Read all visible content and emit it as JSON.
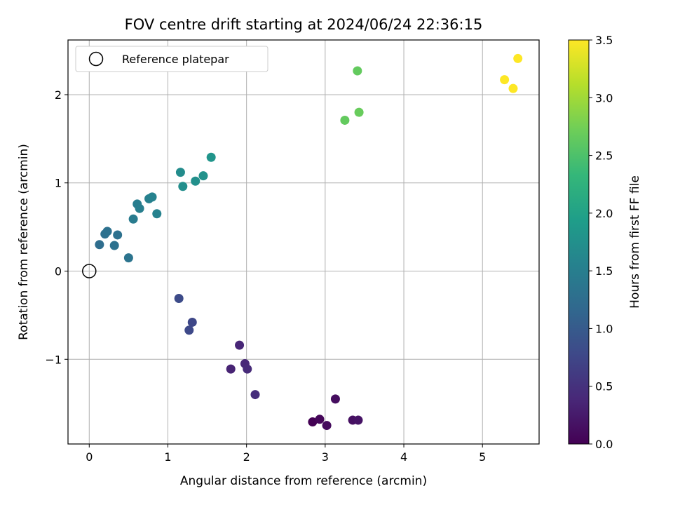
{
  "chart_data": {
    "type": "scatter",
    "title": "FOV centre drift starting at 2024/06/24 22:36:15",
    "xlabel": "Angular distance from reference (arcmin)",
    "ylabel": "Rotation from reference (arcmin)",
    "xlim": [
      -0.27,
      5.72
    ],
    "ylim": [
      -1.96,
      2.62
    ],
    "xticks": [
      0,
      1,
      2,
      3,
      4,
      5
    ],
    "yticks": [
      -1,
      0,
      1,
      2
    ],
    "xtick_labels": [
      "0",
      "1",
      "2",
      "3",
      "4",
      "5"
    ],
    "ytick_labels": [
      "−1",
      "0",
      "1",
      "2"
    ],
    "grid": true,
    "legend": {
      "placement": "top-left",
      "entries": [
        {
          "label": "Reference platepar",
          "marker": "open-circle"
        }
      ]
    },
    "reference_point": {
      "x": 0,
      "y": 0
    },
    "colormap": "viridis",
    "colorbar": {
      "label": "Hours from first FF file",
      "min": 0.0,
      "max": 3.5,
      "ticks": [
        0.0,
        0.5,
        1.0,
        1.5,
        2.0,
        2.5,
        3.0,
        3.5
      ],
      "tick_labels": [
        "0.0",
        "0.5",
        "1.0",
        "1.5",
        "2.0",
        "2.5",
        "3.0",
        "3.5"
      ]
    },
    "points": [
      {
        "x": 2.84,
        "y": -1.71,
        "hours": 0.0
      },
      {
        "x": 2.93,
        "y": -1.68,
        "hours": 0.05
      },
      {
        "x": 3.02,
        "y": -1.75,
        "hours": 0.1
      },
      {
        "x": 3.13,
        "y": -1.45,
        "hours": 0.12
      },
      {
        "x": 3.35,
        "y": -1.69,
        "hours": 0.15
      },
      {
        "x": 3.42,
        "y": -1.69,
        "hours": 0.18
      },
      {
        "x": 1.8,
        "y": -1.11,
        "hours": 0.35
      },
      {
        "x": 1.91,
        "y": -0.84,
        "hours": 0.38
      },
      {
        "x": 1.98,
        "y": -1.05,
        "hours": 0.4
      },
      {
        "x": 2.01,
        "y": -1.11,
        "hours": 0.42
      },
      {
        "x": 2.11,
        "y": -1.4,
        "hours": 0.45
      },
      {
        "x": 1.14,
        "y": -0.31,
        "hours": 0.8
      },
      {
        "x": 1.27,
        "y": -0.67,
        "hours": 0.78
      },
      {
        "x": 1.31,
        "y": -0.58,
        "hours": 0.76
      },
      {
        "x": 0.13,
        "y": 0.3,
        "hours": 1.25
      },
      {
        "x": 0.2,
        "y": 0.42,
        "hours": 1.28
      },
      {
        "x": 0.23,
        "y": 0.45,
        "hours": 1.3
      },
      {
        "x": 0.32,
        "y": 0.29,
        "hours": 1.3
      },
      {
        "x": 0.36,
        "y": 0.41,
        "hours": 1.3
      },
      {
        "x": 0.5,
        "y": 0.15,
        "hours": 1.35
      },
      {
        "x": 0.56,
        "y": 0.59,
        "hours": 1.45
      },
      {
        "x": 0.61,
        "y": 0.76,
        "hours": 1.48
      },
      {
        "x": 0.64,
        "y": 0.71,
        "hours": 1.5
      },
      {
        "x": 0.76,
        "y": 0.82,
        "hours": 1.52
      },
      {
        "x": 0.8,
        "y": 0.84,
        "hours": 1.55
      },
      {
        "x": 0.86,
        "y": 0.65,
        "hours": 1.55
      },
      {
        "x": 1.16,
        "y": 1.12,
        "hours": 1.7
      },
      {
        "x": 1.19,
        "y": 0.96,
        "hours": 1.72
      },
      {
        "x": 1.35,
        "y": 1.02,
        "hours": 1.75
      },
      {
        "x": 1.45,
        "y": 1.08,
        "hours": 1.78
      },
      {
        "x": 1.55,
        "y": 1.29,
        "hours": 1.82
      },
      {
        "x": 3.25,
        "y": 1.71,
        "hours": 2.65
      },
      {
        "x": 3.41,
        "y": 2.27,
        "hours": 2.65
      },
      {
        "x": 3.43,
        "y": 1.8,
        "hours": 2.68
      },
      {
        "x": 5.28,
        "y": 2.17,
        "hours": 3.5
      },
      {
        "x": 5.39,
        "y": 2.07,
        "hours": 3.5
      },
      {
        "x": 5.45,
        "y": 2.41,
        "hours": 3.5
      }
    ]
  }
}
